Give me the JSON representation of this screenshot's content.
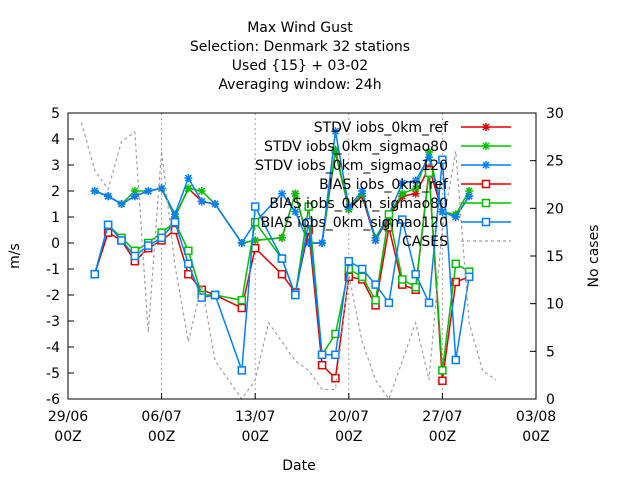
{
  "chart_data": {
    "type": "line",
    "title_lines": [
      "Max Wind Gust",
      "Selection: Denmark      32 stations",
      "Used {15} + 03-02",
      "Averaging window: 24h"
    ],
    "xlabel": "Date",
    "ylabel": "m/s",
    "y2label": "No cases",
    "ylim": [
      -6,
      5
    ],
    "y2lim": [
      0,
      30
    ],
    "xlim": [
      0,
      35
    ],
    "grid": true,
    "legend_position": "top-right",
    "yticks": [
      -6,
      -5,
      -4,
      -3,
      -2,
      -1,
      0,
      1,
      2,
      3,
      4,
      5
    ],
    "ytick_labels": [
      "-6",
      "-5",
      "-4",
      "-3",
      "-2",
      "-1",
      "0",
      "1",
      "2",
      "3",
      "4",
      "5"
    ],
    "y2ticks": [
      0,
      5,
      10,
      15,
      20,
      25,
      30
    ],
    "xticks": [
      {
        "x": 0,
        "line1": "29/06",
        "line2": "00Z"
      },
      {
        "x": 7,
        "line1": "06/07",
        "line2": "00Z"
      },
      {
        "x": 14,
        "line1": "13/07",
        "line2": "00Z"
      },
      {
        "x": 21,
        "line1": "20/07",
        "line2": "00Z"
      },
      {
        "x": 28,
        "line1": "27/07",
        "line2": "00Z"
      },
      {
        "x": 35,
        "line1": "03/08",
        "line2": "00Z"
      }
    ],
    "x": [
      2,
      3,
      4,
      5,
      6,
      7,
      8,
      9,
      10,
      11,
      13,
      14,
      16,
      17,
      18,
      19,
      20,
      21,
      22,
      23,
      24,
      25,
      26,
      27,
      28,
      29,
      30
    ],
    "series": [
      {
        "name": "STDV iobs_0km_ref",
        "axis": "y",
        "color": "#e00000",
        "marker": "x",
        "values": [
          2.0,
          1.8,
          1.5,
          1.8,
          2.0,
          2.1,
          1.0,
          2.1,
          1.6,
          1.5,
          0.0,
          0.1,
          0.2,
          1.9,
          0.0,
          0.0,
          3.5,
          1.3,
          1.8,
          0.1,
          1.0,
          1.8,
          1.9,
          2.9,
          1.2,
          1.0,
          1.8
        ]
      },
      {
        "name": "STDV iobs_0km_sigmao80",
        "axis": "y",
        "color": "#00c000",
        "marker": "x",
        "values": [
          2.0,
          1.8,
          1.5,
          2.0,
          2.0,
          2.1,
          1.0,
          2.1,
          2.0,
          1.5,
          0.0,
          0.1,
          0.2,
          1.9,
          0.0,
          0.0,
          3.6,
          1.3,
          1.9,
          0.2,
          1.1,
          1.9,
          2.1,
          3.5,
          1.2,
          1.1,
          2.0
        ]
      },
      {
        "name": "STDV iobs_0km_sigmao120",
        "axis": "y",
        "color": "#0080ff",
        "marker": "x",
        "values": [
          2.0,
          1.8,
          1.5,
          1.8,
          2.0,
          2.1,
          1.1,
          2.5,
          1.6,
          1.5,
          0.0,
          0.8,
          1.9,
          1.2,
          0.0,
          0.0,
          4.3,
          1.4,
          2.0,
          0.1,
          1.1,
          2.3,
          2.4,
          3.3,
          1.2,
          1.0,
          1.8
        ]
      },
      {
        "name": "BIAS iobs_0km_ref",
        "axis": "y",
        "color": "#e00000",
        "marker": "sq",
        "values": [
          -1.2,
          0.4,
          0.1,
          -0.7,
          -0.2,
          0.1,
          0.5,
          -1.2,
          -1.8,
          -2.0,
          -2.5,
          -0.2,
          -1.2,
          -1.9,
          0.5,
          -4.7,
          -5.2,
          -1.3,
          -1.4,
          -2.4,
          0.6,
          -1.6,
          -1.8,
          2.8,
          -5.3,
          -1.5,
          -1.3
        ]
      },
      {
        "name": "BIAS iobs_0km_sigmao80",
        "axis": "y",
        "color": "#00c000",
        "marker": "sq",
        "values": [
          -1.2,
          0.7,
          0.2,
          -0.3,
          0.0,
          0.4,
          0.8,
          -0.3,
          -2.0,
          -2.0,
          -2.2,
          0.8,
          -0.6,
          -2.0,
          1.4,
          -4.3,
          -3.5,
          -1.0,
          -1.3,
          -2.2,
          1.1,
          -1.4,
          -1.7,
          2.7,
          -4.9,
          -0.8,
          -1.1
        ]
      },
      {
        "name": "BIAS iobs_0km_sigmao120",
        "axis": "y",
        "color": "#0080ff",
        "marker": "sq",
        "values": [
          -1.2,
          0.7,
          0.1,
          -0.5,
          -0.1,
          0.2,
          0.8,
          -0.8,
          -2.1,
          -2.0,
          -4.9,
          1.4,
          -0.6,
          -2.0,
          0.8,
          -4.3,
          -4.3,
          -0.7,
          -1.0,
          -1.6,
          -2.3,
          0.9,
          -1.2,
          -2.3,
          3.2,
          -4.5,
          -1.3
        ]
      },
      {
        "name": "CASES",
        "axis": "y2",
        "color": "#a0a0a0",
        "marker": "none",
        "dashed": true,
        "x": [
          1,
          2,
          3,
          4,
          5,
          6,
          7,
          8,
          9,
          10,
          11,
          12,
          13,
          14,
          15,
          16,
          17,
          18,
          19,
          20,
          21,
          22,
          23,
          24,
          25,
          26,
          27,
          28,
          29,
          30,
          31,
          32
        ],
        "values": [
          29,
          24,
          22,
          27,
          28,
          7,
          26,
          14,
          6,
          12,
          4,
          2,
          0,
          2,
          8,
          6,
          4,
          3,
          1,
          1,
          13,
          6,
          2,
          0,
          4,
          8,
          2,
          18,
          26,
          8,
          3,
          2
        ]
      }
    ]
  }
}
